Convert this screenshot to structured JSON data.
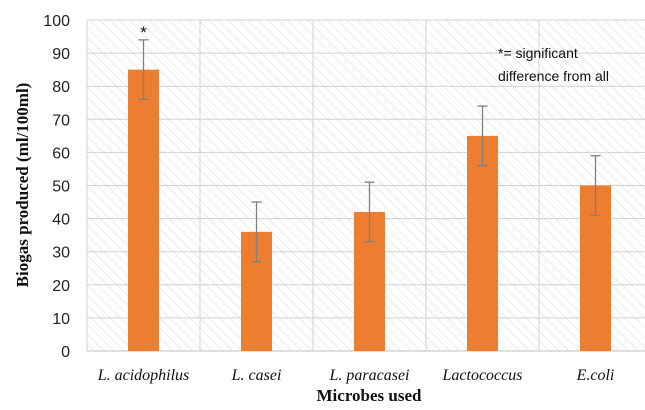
{
  "chart_data": {
    "type": "bar",
    "categories": [
      "L. acidophilus",
      "L. casei",
      "L. paracasei",
      "Lactococcus",
      "E.coli"
    ],
    "values": [
      85,
      36,
      42,
      65,
      50
    ],
    "error": [
      9,
      9,
      9,
      9,
      9
    ],
    "significance": [
      "*",
      "",
      "",
      "",
      ""
    ],
    "xlabel": "Microbes used",
    "ylabel": "Biogas produced (ml/100ml)",
    "ylim": [
      0,
      100
    ],
    "yticks": [
      0,
      10,
      20,
      30,
      40,
      50,
      60,
      70,
      80,
      90,
      100
    ],
    "annotation": [
      "*= significant",
      "difference from all"
    ],
    "bar_color": "#ED7D31",
    "errorbar_color": "#7F7F7F",
    "grid": true,
    "legend": "none"
  }
}
